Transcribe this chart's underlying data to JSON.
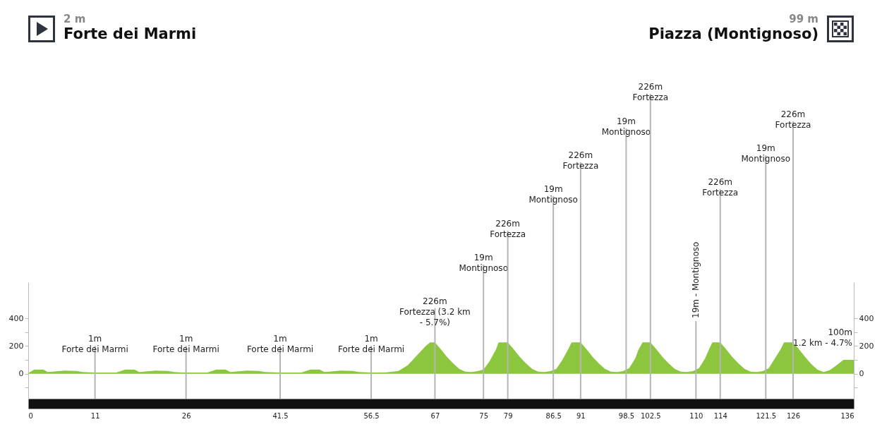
{
  "chart_data": {
    "type": "area",
    "color": "#8cc63f",
    "x": [
      0,
      1,
      2.5,
      3.2,
      4,
      6,
      8,
      9,
      11,
      14.5,
      16,
      17.5,
      18.3,
      19,
      21,
      23,
      24,
      26,
      29.5,
      31,
      32.5,
      33.3,
      34,
      36,
      38,
      39,
      41.5,
      45,
      46.5,
      48,
      48.8,
      49.5,
      51.5,
      53.5,
      54.5,
      56.5,
      59,
      61,
      62.5,
      64,
      65.5,
      66.2,
      67,
      68,
      69,
      70,
      71,
      72,
      73,
      74,
      75,
      76,
      77,
      77.5,
      79,
      80,
      81,
      82,
      83,
      84,
      85,
      86,
      87,
      88,
      89,
      89.5,
      91,
      92,
      93,
      94,
      95,
      96,
      97,
      98,
      99,
      100,
      100.5,
      101.2,
      102.5,
      103.5,
      104.5,
      105.5,
      106.5,
      107.5,
      108.5,
      109.5,
      110.5,
      111.5,
      112.2,
      112.7,
      114,
      115,
      116,
      117,
      118,
      119,
      120,
      121,
      122,
      123,
      124,
      124.5,
      126,
      127,
      128,
      129,
      130,
      131,
      132,
      133,
      134.3,
      136
    ],
    "values": [
      5,
      30,
      30,
      12,
      15,
      22,
      20,
      12,
      8,
      8,
      30,
      30,
      12,
      15,
      22,
      20,
      12,
      8,
      8,
      30,
      30,
      12,
      15,
      22,
      20,
      12,
      8,
      8,
      30,
      30,
      12,
      15,
      22,
      20,
      12,
      8,
      10,
      20,
      60,
      130,
      200,
      226,
      226,
      175,
      120,
      75,
      35,
      15,
      12,
      18,
      30,
      90,
      170,
      226,
      226,
      175,
      120,
      75,
      35,
      15,
      12,
      18,
      35,
      100,
      180,
      226,
      226,
      175,
      120,
      75,
      35,
      15,
      12,
      18,
      40,
      110,
      170,
      226,
      226,
      175,
      120,
      75,
      35,
      15,
      12,
      18,
      40,
      110,
      180,
      226,
      226,
      175,
      120,
      75,
      35,
      15,
      12,
      18,
      40,
      110,
      180,
      226,
      226,
      175,
      120,
      70,
      30,
      12,
      25,
      55,
      100,
      100
    ],
    "xlim": [
      0,
      136
    ],
    "xticks": [
      0,
      11,
      26,
      41.5,
      56.5,
      67,
      75,
      79,
      86.5,
      91,
      98.5,
      102.5,
      110,
      114,
      121.5,
      126,
      136
    ],
    "ylim": [
      -180,
      660
    ],
    "yticks": [
      {
        "value": -100,
        "label": null
      },
      0,
      {
        "value": 100,
        "label": null
      },
      200,
      {
        "value": 300,
        "label": null
      },
      400
    ],
    "y2lim": [
      -180,
      660
    ],
    "y2ticks": [
      {
        "value": -100,
        "label": null
      },
      0,
      {
        "value": 100,
        "label": null
      },
      200,
      {
        "value": 300,
        "label": null
      },
      400
    ],
    "ref_lines": [
      {
        "axis": "x",
        "value": 11,
        "label": "1m\nForte dei Marmi"
      },
      {
        "axis": "x",
        "value": 26,
        "label": "1m\nForte dei Marmi"
      },
      {
        "axis": "x",
        "value": 41.5,
        "label": "1m\nForte dei Marmi"
      },
      {
        "axis": "x",
        "value": 56.5,
        "label": "1m\nForte dei Marmi"
      },
      {
        "axis": "x",
        "value": 67,
        "label": "226m\nFortezza (3.2 km\n- 5.7%)"
      },
      {
        "axis": "x",
        "value": 75,
        "label": "19m\nMontignoso"
      },
      {
        "axis": "x",
        "value": 79,
        "label": "226m\nFortezza"
      },
      {
        "axis": "x",
        "value": 86.5,
        "label": "19m\nMontignoso"
      },
      {
        "axis": "x",
        "value": 91,
        "label": "226m\nFortezza"
      },
      {
        "axis": "x",
        "value": 98.5,
        "label": "19m\nMontignoso"
      },
      {
        "axis": "x",
        "value": 102.5,
        "label": "226m\nFortezza"
      },
      {
        "axis": "x",
        "value": 110,
        "label": "19m - Montignoso"
      },
      {
        "axis": "x",
        "value": 114,
        "label": "226m\nFortezza"
      },
      {
        "axis": "x",
        "value": 121.5,
        "label": "19m\nMontignoso"
      },
      {
        "axis": "x",
        "value": 126,
        "label": "226m\nFortezza"
      }
    ],
    "annotations": [
      "2 m",
      "Forte dei Marmi",
      "99 m",
      "Piazza (Montignoso)",
      {
        "text": "100m\n1.2 km - 4.7%",
        "x": 136,
        "y": 100
      }
    ]
  }
}
